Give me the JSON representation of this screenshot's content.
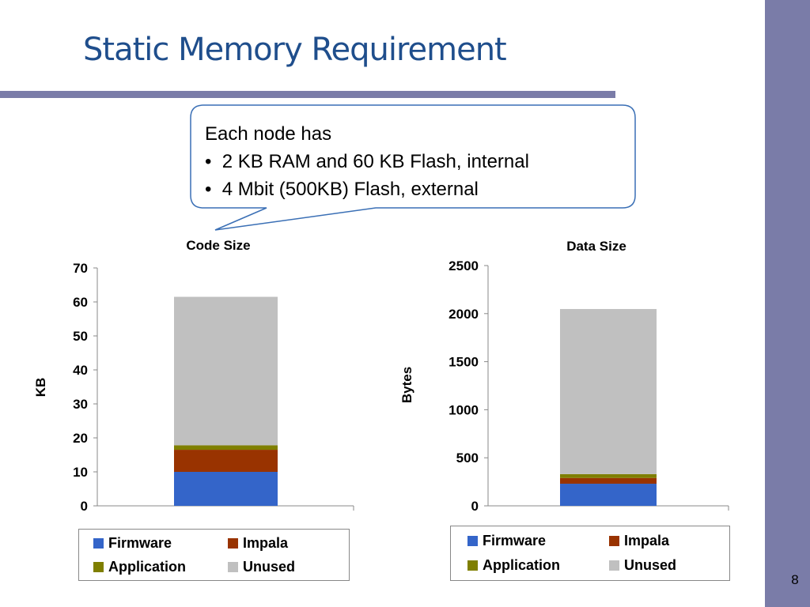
{
  "slide": {
    "title": "Static Memory Requirement",
    "page_number": "8"
  },
  "callout": {
    "intro": "Each node has",
    "bullets": [
      "2 KB RAM and 60 KB Flash, internal",
      "4 Mbit (500KB) Flash, external"
    ],
    "bullet_char": "•"
  },
  "colors": {
    "accent": "#7a7ca8",
    "title": "#1f4e8c",
    "Firmware": "#3465c9",
    "Impala": "#993300",
    "Application": "#7f7f00",
    "Unused": "#c0c0c0"
  },
  "chart_data": [
    {
      "type": "bar",
      "stacked": true,
      "title": "Code Size",
      "xlabel": "",
      "ylabel": "KB",
      "ylim": [
        0,
        70
      ],
      "yticks": [
        0,
        10,
        20,
        30,
        40,
        50,
        60,
        70
      ],
      "categories": [
        ""
      ],
      "series": [
        {
          "name": "Firmware",
          "values": [
            10
          ]
        },
        {
          "name": "Impala",
          "values": [
            6.5
          ]
        },
        {
          "name": "Application",
          "values": [
            1.3
          ]
        },
        {
          "name": "Unused",
          "values": [
            43.7
          ]
        }
      ],
      "legend": "bottom",
      "grid": false
    },
    {
      "type": "bar",
      "stacked": true,
      "title": "Data Size",
      "xlabel": "",
      "ylabel": "Bytes",
      "ylim": [
        0,
        2500
      ],
      "yticks": [
        0,
        500,
        1000,
        1500,
        2000,
        2500
      ],
      "categories": [
        ""
      ],
      "series": [
        {
          "name": "Firmware",
          "values": [
            230
          ]
        },
        {
          "name": "Impala",
          "values": [
            60
          ]
        },
        {
          "name": "Application",
          "values": [
            40
          ]
        },
        {
          "name": "Unused",
          "values": [
            1718
          ]
        }
      ],
      "legend": "bottom",
      "grid": false
    }
  ]
}
